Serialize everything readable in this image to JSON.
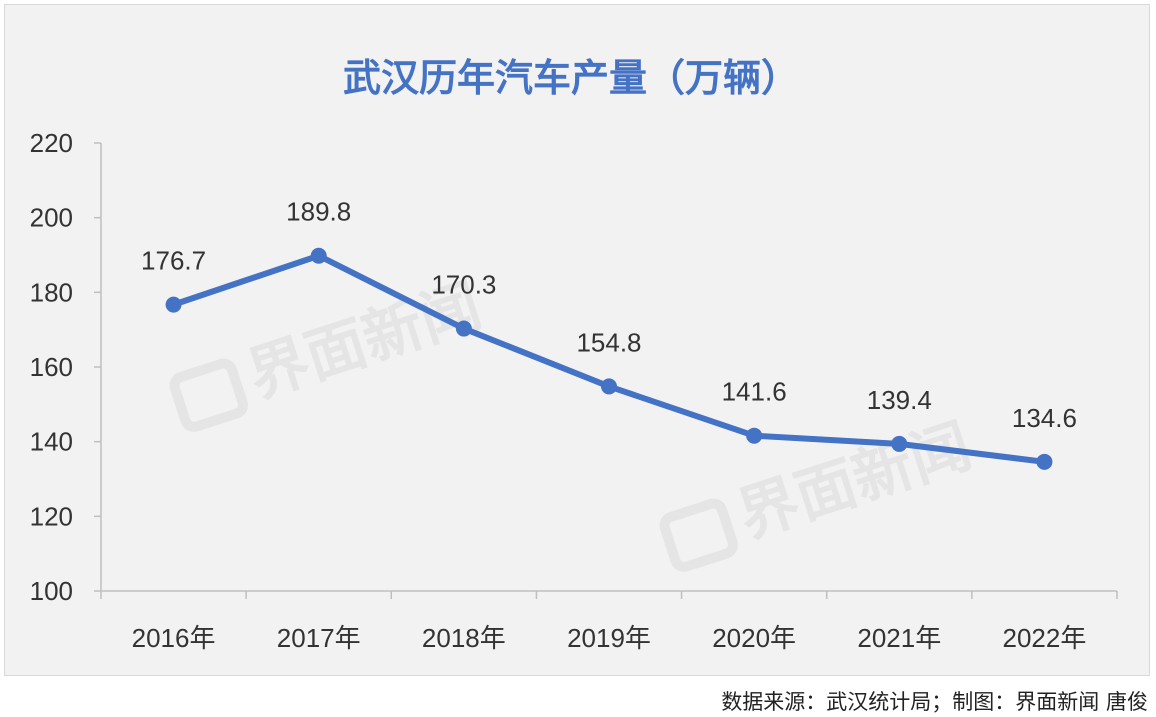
{
  "chart_data": {
    "type": "line",
    "title": "武汉历年汽车产量（万辆）",
    "categories": [
      "2016年",
      "2017年",
      "2018年",
      "2019年",
      "2020年",
      "2021年",
      "2022年"
    ],
    "series": [
      {
        "values": [
          176.7,
          189.8,
          170.3,
          154.8,
          141.6,
          139.4,
          134.6
        ]
      }
    ],
    "data_labels": [
      "176.7",
      "189.8",
      "170.3",
      "154.8",
      "141.6",
      "139.4",
      "134.6"
    ],
    "ylim": [
      100,
      220
    ],
    "yticks": [
      100,
      120,
      140,
      160,
      180,
      200,
      220
    ],
    "ytick_labels": [
      "100",
      "120",
      "140",
      "160",
      "180",
      "200",
      "220"
    ],
    "grid": false,
    "line_color": "#4472c4",
    "title_color": "#4472c4"
  },
  "watermark": "界面新闻",
  "source_note": "数据来源：武汉统计局；制图：界面新闻 唐俊"
}
